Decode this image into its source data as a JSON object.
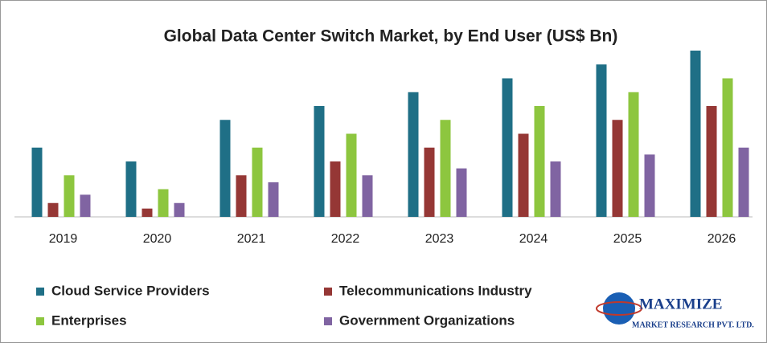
{
  "chart_data": {
    "type": "bar",
    "title": "Global Data Center Switch Market, by End User (US$ Bn)",
    "categories": [
      "2019",
      "2020",
      "2021",
      "2022",
      "2023",
      "2024",
      "2025",
      "2026"
    ],
    "series": [
      {
        "name": "Cloud Service Providers",
        "color": "#1f6f86",
        "values": [
          5,
          4,
          7,
          8,
          9,
          10,
          11,
          12
        ]
      },
      {
        "name": "Telecommunications Industry",
        "color": "#953735",
        "values": [
          1,
          0.6,
          3,
          4,
          5,
          6,
          7,
          8
        ]
      },
      {
        "name": "Enterprises",
        "color": "#8dc63f",
        "values": [
          3,
          2,
          5,
          6,
          7,
          8,
          9,
          10
        ]
      },
      {
        "name": "Government Organizations",
        "color": "#8064a2",
        "values": [
          1.6,
          1,
          2.5,
          3,
          3.5,
          4,
          4.5,
          5
        ]
      }
    ],
    "ylim": [
      0,
      12
    ]
  },
  "logo": {
    "name": "MAXIMIZE",
    "tagline": "MARKET RESEARCH PVT. LTD."
  }
}
